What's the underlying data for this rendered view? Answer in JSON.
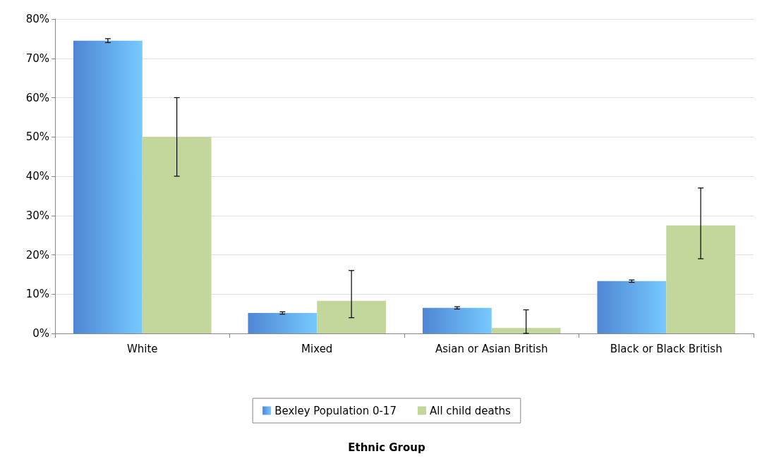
{
  "chart_data": {
    "type": "bar",
    "annotations": [
      "Ethnic Group"
    ],
    "categories": [
      "White",
      "Mixed",
      "Asian or Asian British",
      "Black or Black British"
    ],
    "series": [
      {
        "name": "Bexley Population 0-17",
        "color": "#4f86d4",
        "values": [
          74.5,
          5.2,
          6.5,
          13.3
        ],
        "errors": [
          0.5,
          0.3,
          0.3,
          0.3
        ]
      },
      {
        "name": "All child deaths",
        "color": "#c3d69b",
        "values": [
          50,
          8.3,
          1.4,
          27.5
        ],
        "errors": [
          [
            40,
            60
          ],
          [
            4,
            16
          ],
          [
            0,
            6
          ],
          [
            19,
            37
          ]
        ]
      }
    ],
    "ylim": [
      0,
      80
    ],
    "yticks": [
      {
        "value": 0,
        "label": "0%"
      },
      {
        "value": 10,
        "label": "10%"
      },
      {
        "value": 20,
        "label": "20%"
      },
      {
        "value": 30,
        "label": "30%"
      },
      {
        "value": 40,
        "label": "40%"
      },
      {
        "value": 50,
        "label": "50%"
      },
      {
        "value": 60,
        "label": "60%"
      },
      {
        "value": 70,
        "label": "70%"
      },
      {
        "value": 80,
        "label": "80%"
      }
    ],
    "grid": "y",
    "legend": "bottom"
  }
}
